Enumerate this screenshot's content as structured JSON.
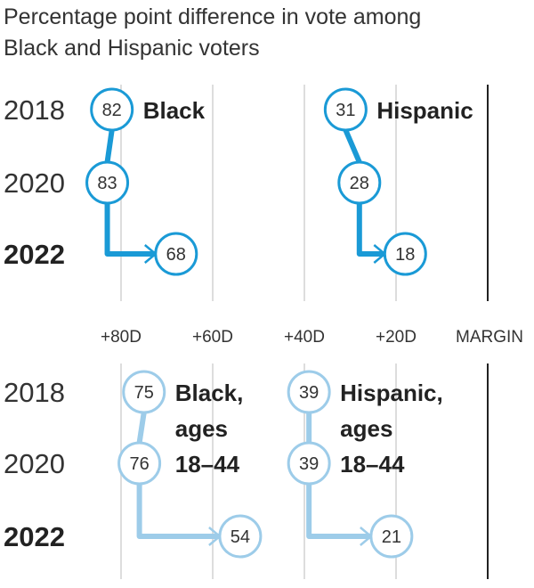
{
  "title_lines": [
    "Percentage point difference in vote among",
    "Black and Hispanic voters"
  ],
  "colors": {
    "dark_series": "#1a9ad6",
    "light_series": "#9dcce9",
    "grid": "#dddddd",
    "zero_line": "#222222",
    "text": "#222222"
  },
  "chart_data": {
    "type": "line",
    "x_axis": {
      "tick_values": [
        80,
        60,
        40,
        20,
        0
      ],
      "tick_labels": [
        "+80D",
        "+60D",
        "+40D",
        "+20D",
        "MARGIN"
      ],
      "reversed": true
    },
    "panels": [
      {
        "years": [
          "2018",
          "2020",
          "2022"
        ],
        "highlight_year": "2022",
        "series": [
          {
            "name": "Black",
            "values": [
              82,
              83,
              68
            ],
            "style": "dark"
          },
          {
            "name": "Hispanic",
            "values": [
              31,
              28,
              18
            ],
            "style": "dark"
          }
        ]
      },
      {
        "years": [
          "2018",
          "2020",
          "2022"
        ],
        "highlight_year": "2022",
        "series": [
          {
            "name": "Black, ages 18–44",
            "label_lines": [
              "Black,",
              "ages",
              "18–44"
            ],
            "values": [
              75,
              76,
              54
            ],
            "style": "light"
          },
          {
            "name": "Hispanic, ages 18–44",
            "label_lines": [
              "Hispanic,",
              "ages",
              "18–44"
            ],
            "values": [
              39,
              39,
              21
            ],
            "style": "light"
          }
        ]
      }
    ]
  }
}
